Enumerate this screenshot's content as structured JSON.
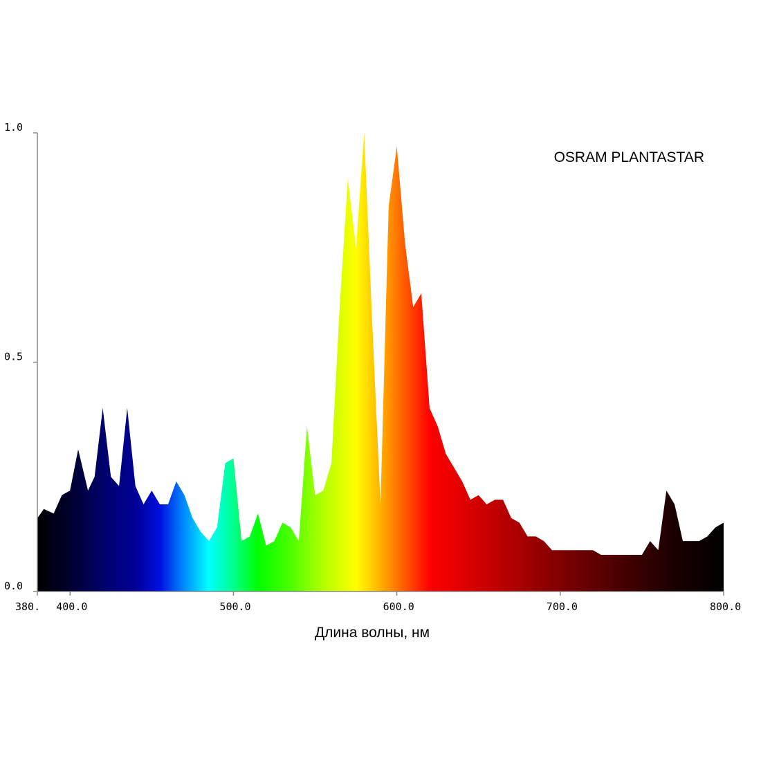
{
  "chart_data": {
    "type": "area",
    "title": "",
    "annotation": "OSRAM PLANTASTAR",
    "xlabel": "Длина волны, нм",
    "ylabel": "",
    "xlim": [
      380,
      800
    ],
    "ylim": [
      0,
      1
    ],
    "grid": false,
    "legend": "none",
    "x_ticks": [
      {
        "value": 380,
        "label": "380."
      },
      {
        "value": 400,
        "label": "400.0"
      },
      {
        "value": 500,
        "label": "500.0"
      },
      {
        "value": 600,
        "label": "600.0"
      },
      {
        "value": 700,
        "label": "700.0"
      },
      {
        "value": 800,
        "label": "800.0"
      }
    ],
    "y_ticks": [
      {
        "value": 0,
        "label": "0.0"
      },
      {
        "value": 0.5,
        "label": "0.5"
      },
      {
        "value": 1,
        "label": "1.0"
      }
    ],
    "series": [
      {
        "x": [
          380,
          384,
          390,
          395,
          400,
          405,
          411,
          415,
          420,
          425,
          430,
          435,
          440,
          445,
          450,
          455,
          460,
          465,
          470,
          475,
          480,
          485,
          490,
          495,
          500,
          505,
          510,
          515,
          520,
          525,
          530,
          535,
          540,
          545,
          550,
          555,
          560,
          565,
          570,
          575,
          580,
          585,
          590,
          595,
          600,
          605,
          610,
          615,
          620,
          625,
          630,
          635,
          640,
          645,
          650,
          655,
          660,
          665,
          670,
          675,
          680,
          685,
          690,
          695,
          700,
          705,
          710,
          715,
          720,
          725,
          730,
          735,
          740,
          745,
          750,
          755,
          760,
          765,
          770,
          775,
          780,
          785,
          790,
          795,
          800
        ],
        "y": [
          0.16,
          0.18,
          0.17,
          0.21,
          0.22,
          0.31,
          0.22,
          0.25,
          0.4,
          0.25,
          0.23,
          0.4,
          0.23,
          0.19,
          0.22,
          0.19,
          0.19,
          0.24,
          0.21,
          0.16,
          0.13,
          0.11,
          0.14,
          0.28,
          0.29,
          0.11,
          0.12,
          0.17,
          0.1,
          0.11,
          0.15,
          0.14,
          0.11,
          0.36,
          0.21,
          0.22,
          0.28,
          0.62,
          0.9,
          0.75,
          1.0,
          0.58,
          0.19,
          0.84,
          0.97,
          0.76,
          0.62,
          0.65,
          0.4,
          0.36,
          0.3,
          0.27,
          0.24,
          0.2,
          0.21,
          0.19,
          0.2,
          0.2,
          0.16,
          0.15,
          0.12,
          0.12,
          0.11,
          0.09,
          0.09,
          0.09,
          0.09,
          0.09,
          0.09,
          0.08,
          0.08,
          0.08,
          0.08,
          0.08,
          0.08,
          0.11,
          0.09,
          0.22,
          0.19,
          0.11,
          0.11,
          0.11,
          0.12,
          0.14,
          0.15
        ]
      }
    ]
  },
  "colors": {
    "background": "#ffffff",
    "axis": "#888888",
    "text": "#000000"
  }
}
